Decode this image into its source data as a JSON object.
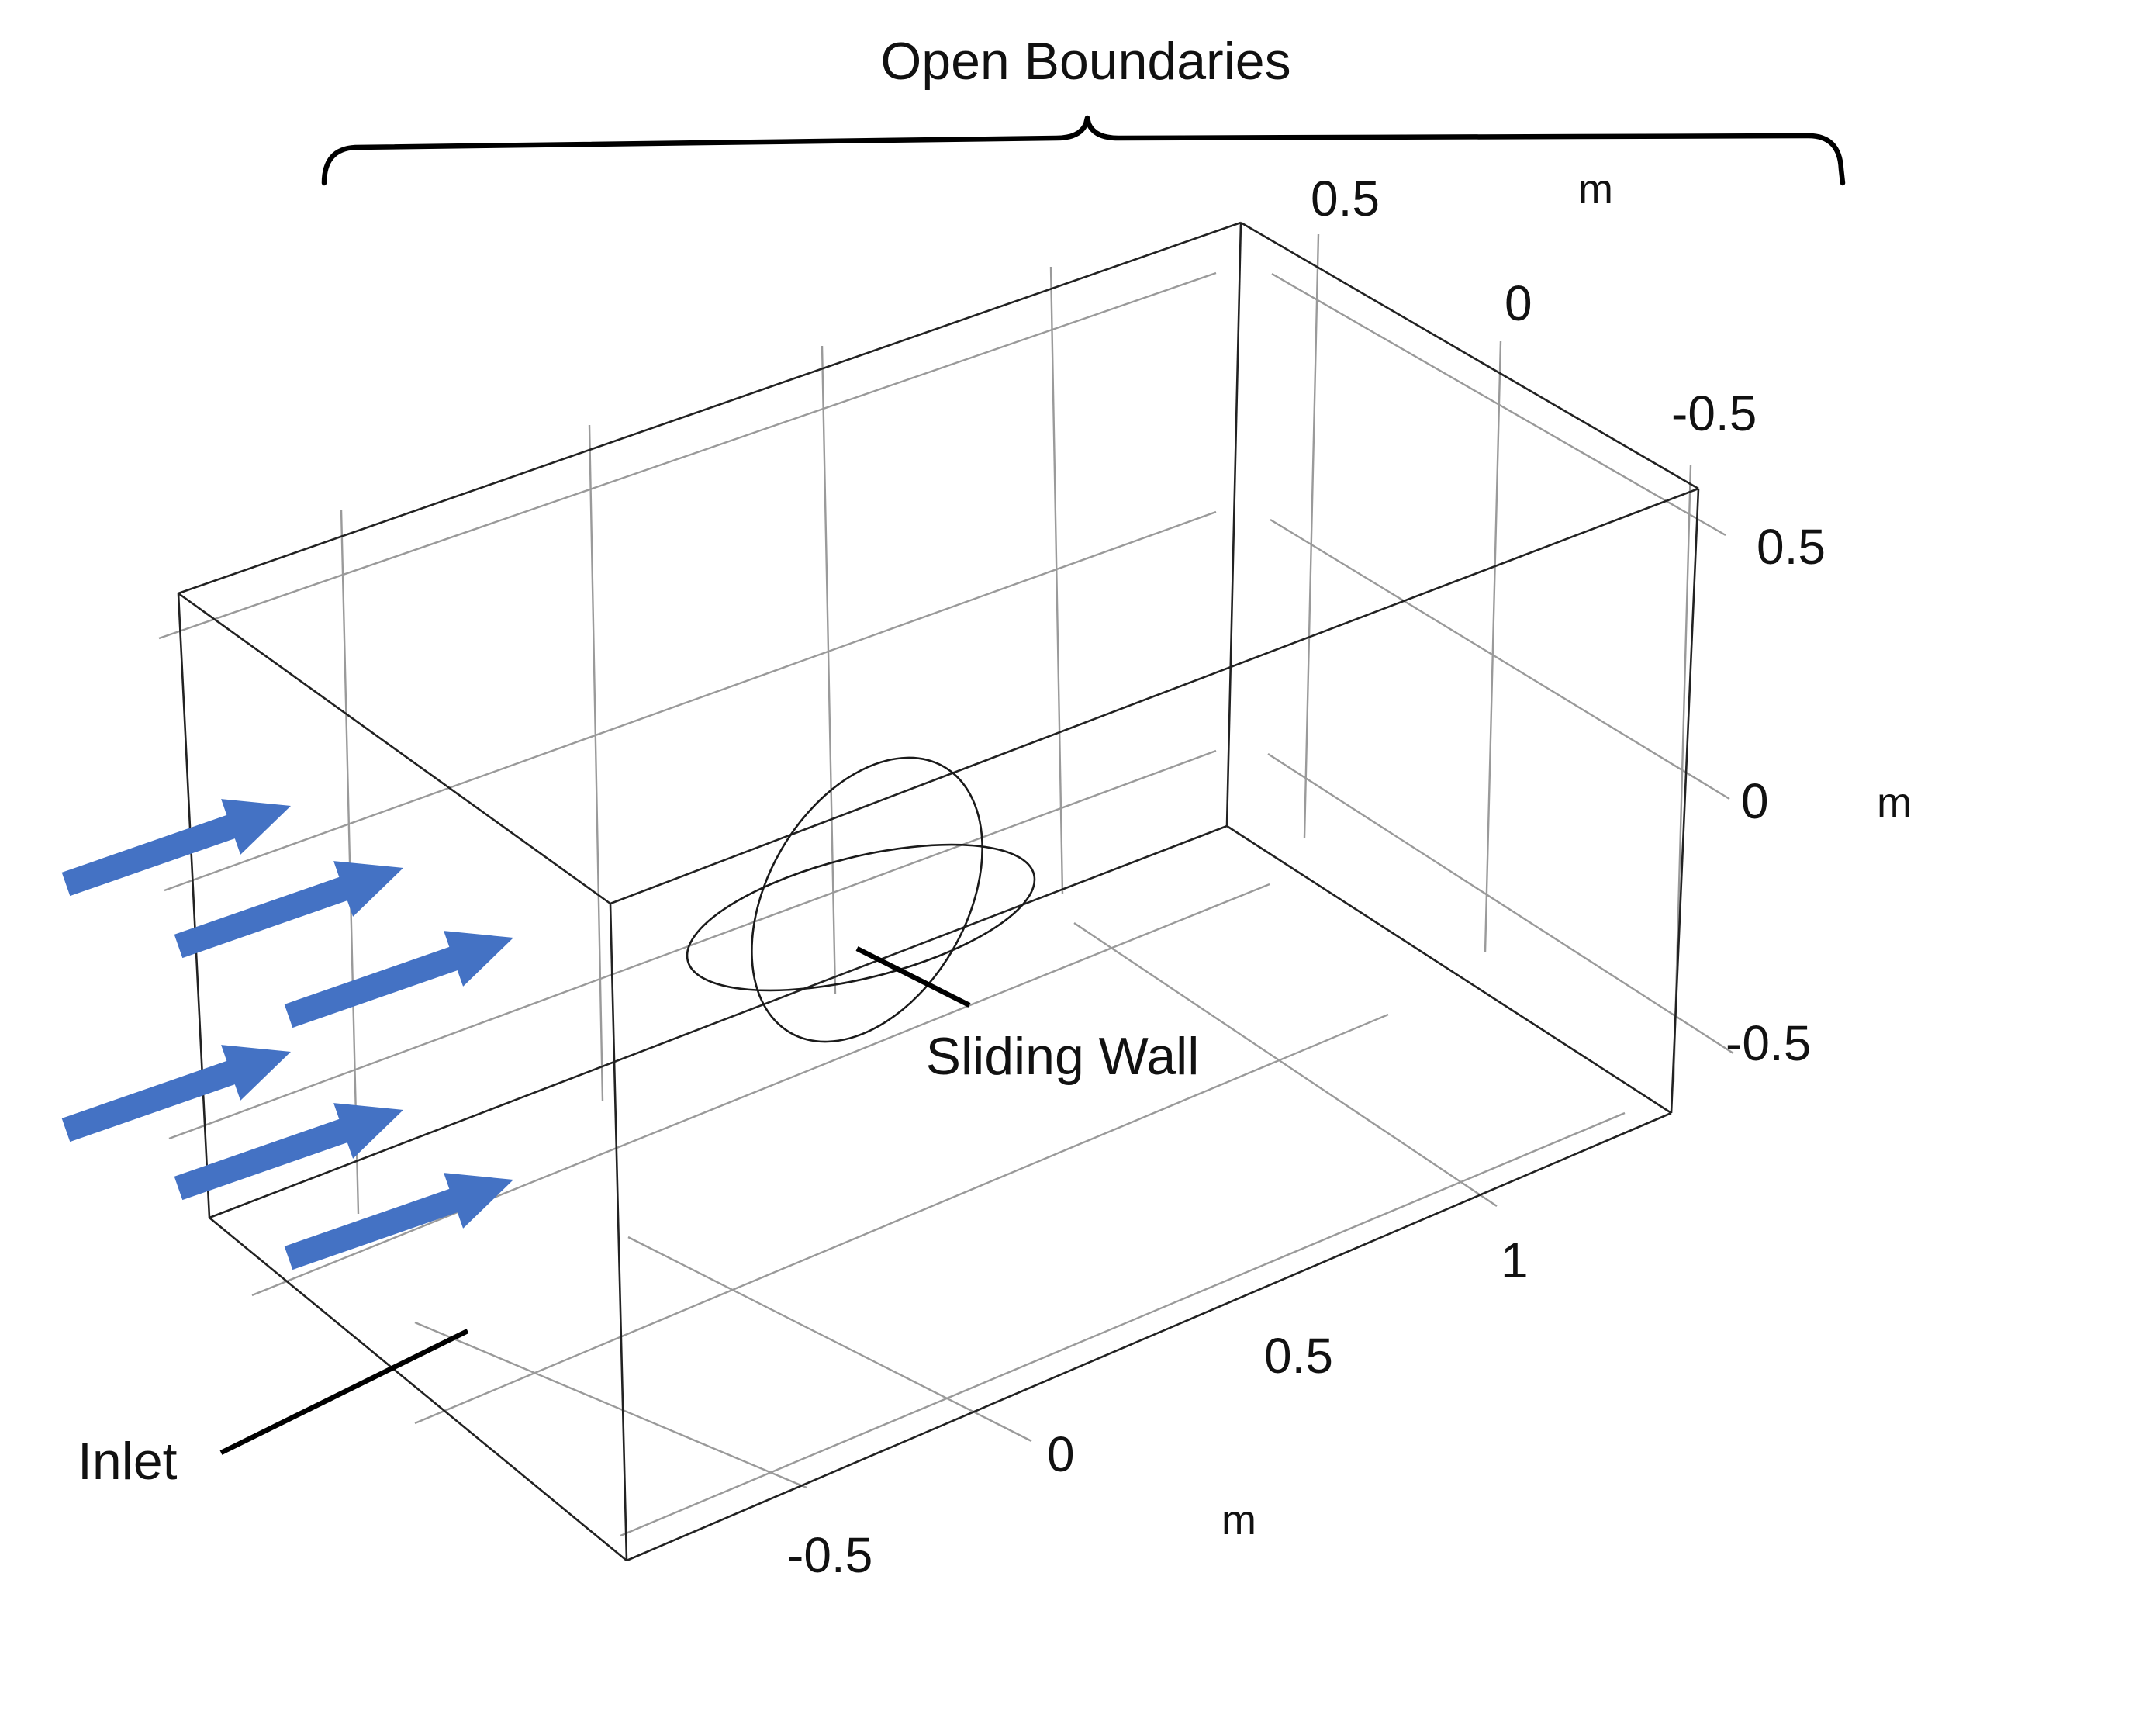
{
  "labels": {
    "open_boundaries": "Open Boundaries",
    "sliding_wall": "Sliding Wall",
    "inlet": "Inlet"
  },
  "axes": {
    "top_ticks": [
      "0.5",
      "0",
      "-0.5"
    ],
    "top_unit": "m",
    "right_ticks": [
      "0.5",
      "0",
      "-0.5"
    ],
    "right_unit": "m",
    "bottom_ticks": [
      "1",
      "0.5",
      "0",
      "-0.5"
    ],
    "bottom_unit": "m"
  },
  "colors": {
    "inlet_arrow": "#4472C4",
    "box_edge": "#222222",
    "grid": "#9a9a9a",
    "annotation": "#000000"
  },
  "inlet_arrow_count": 6
}
